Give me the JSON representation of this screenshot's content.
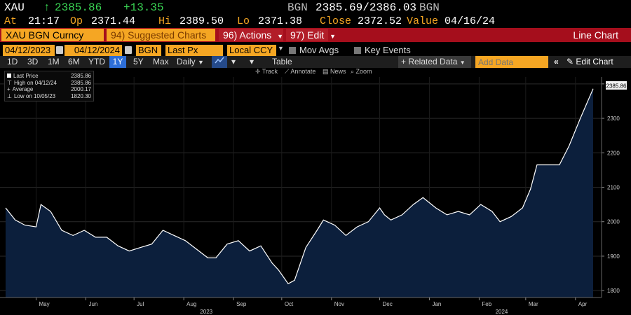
{
  "header": {
    "symbol": "XAU",
    "last_arrow": "↑",
    "last": "2385.86",
    "change": "+13.35",
    "source_left": "BGN",
    "bid_ask": "2385.69/2386.03",
    "source_right": "BGN",
    "at_label": "At",
    "time": "21:17",
    "op_label": "Op",
    "open": "2371.44",
    "hi_label": "Hi",
    "high": "2389.50",
    "lo_label": "Lo",
    "low": "2371.38",
    "close_label": "Close",
    "close": "2372.52",
    "value_label": "Value",
    "value_date": "04/16/24"
  },
  "menubar": {
    "ticker": "XAU BGN Curncy",
    "suggested": "94) Suggested Charts",
    "actions": "96) Actions",
    "edit": "97) Edit",
    "chart_type": "Line Chart"
  },
  "controls": {
    "start_date": "04/12/2023",
    "end_date": "04/12/2024",
    "source": "BGN",
    "field": "Last Px",
    "currency": "Local CCY",
    "mov_avgs": "Mov Avgs",
    "key_events": "Key Events"
  },
  "timeframes": {
    "items": [
      "1D",
      "3D",
      "1M",
      "6M",
      "YTD",
      "1Y",
      "5Y",
      "Max"
    ],
    "selected": "1Y",
    "period": "Daily",
    "table": "Table",
    "related_data": "+ Related Data",
    "add_data_placeholder": "Add Data",
    "edit_chart": "Edit Chart"
  },
  "tools": {
    "track": "Track",
    "annotate": "Annotate",
    "news": "News",
    "zoom": "Zoom"
  },
  "legend": {
    "rows": [
      {
        "label": "Last Price",
        "value": "2385.86"
      },
      {
        "label": "High on 04/12/24",
        "value": "2385.86"
      },
      {
        "label": "Average",
        "value": "2000.17"
      },
      {
        "label": "Low on 10/05/23",
        "value": "1820.30"
      }
    ]
  },
  "colors": {
    "accent_orange": "#f5a623",
    "menu_red": "#a50e1c",
    "positive_green": "#39d353",
    "area_fill": "#0c1f3c",
    "line": "#ffffff"
  },
  "chart_data": {
    "type": "area",
    "last_label": "2385.86",
    "ylim": [
      1780,
      2420
    ],
    "yticks": [
      1800,
      1900,
      2000,
      2100,
      2200,
      2300,
      2400
    ],
    "xlim": [
      "2023-04-12",
      "2024-04-12"
    ],
    "month_ticks": [
      {
        "label": "Apr",
        "date": "2023-04-01"
      },
      {
        "label": "May",
        "date": "2023-05-01"
      },
      {
        "label": "Jun",
        "date": "2023-06-01"
      },
      {
        "label": "Jul",
        "date": "2023-07-01"
      },
      {
        "label": "Aug",
        "date": "2023-08-01"
      },
      {
        "label": "Sep",
        "date": "2023-09-01"
      },
      {
        "label": "Oct",
        "date": "2023-10-01"
      },
      {
        "label": "Nov",
        "date": "2023-11-01"
      },
      {
        "label": "Dec",
        "date": "2023-12-01"
      },
      {
        "label": "Jan",
        "date": "2024-01-01"
      },
      {
        "label": "Feb",
        "date": "2024-02-01"
      },
      {
        "label": "Mar",
        "date": "2024-03-01"
      },
      {
        "label": "Apr",
        "date": "2024-04-01"
      }
    ],
    "year_labels": [
      {
        "label": "2023",
        "date": "2023-08-15"
      },
      {
        "label": "2024",
        "date": "2024-02-15"
      }
    ],
    "x": [
      "2023-04-12",
      "2023-04-18",
      "2023-04-24",
      "2023-05-01",
      "2023-05-04",
      "2023-05-10",
      "2023-05-17",
      "2023-05-24",
      "2023-05-31",
      "2023-06-07",
      "2023-06-14",
      "2023-06-21",
      "2023-06-28",
      "2023-07-05",
      "2023-07-12",
      "2023-07-19",
      "2023-07-26",
      "2023-08-02",
      "2023-08-09",
      "2023-08-16",
      "2023-08-21",
      "2023-08-28",
      "2023-09-04",
      "2023-09-11",
      "2023-09-18",
      "2023-09-25",
      "2023-09-29",
      "2023-10-05",
      "2023-10-09",
      "2023-10-16",
      "2023-10-23",
      "2023-10-27",
      "2023-11-03",
      "2023-11-10",
      "2023-11-17",
      "2023-11-24",
      "2023-12-01",
      "2023-12-04",
      "2023-12-08",
      "2023-12-15",
      "2023-12-22",
      "2023-12-28",
      "2024-01-05",
      "2024-01-12",
      "2024-01-19",
      "2024-01-26",
      "2024-02-02",
      "2024-02-09",
      "2024-02-14",
      "2024-02-21",
      "2024-02-28",
      "2024-03-04",
      "2024-03-08",
      "2024-03-15",
      "2024-03-22",
      "2024-03-28",
      "2024-04-04",
      "2024-04-12"
    ],
    "y": [
      2040,
      2005,
      1990,
      1985,
      2050,
      2030,
      1975,
      1960,
      1975,
      1955,
      1955,
      1930,
      1915,
      1925,
      1935,
      1975,
      1960,
      1945,
      1920,
      1895,
      1895,
      1935,
      1945,
      1915,
      1930,
      1880,
      1860,
      1820,
      1830,
      1925,
      1975,
      2005,
      1990,
      1960,
      1985,
      2000,
      2040,
      2020,
      2005,
      2020,
      2050,
      2070,
      2040,
      2020,
      2030,
      2020,
      2050,
      2030,
      2000,
      2015,
      2040,
      2095,
      2165,
      2165,
      2165,
      2220,
      2300,
      2385.86
    ]
  }
}
